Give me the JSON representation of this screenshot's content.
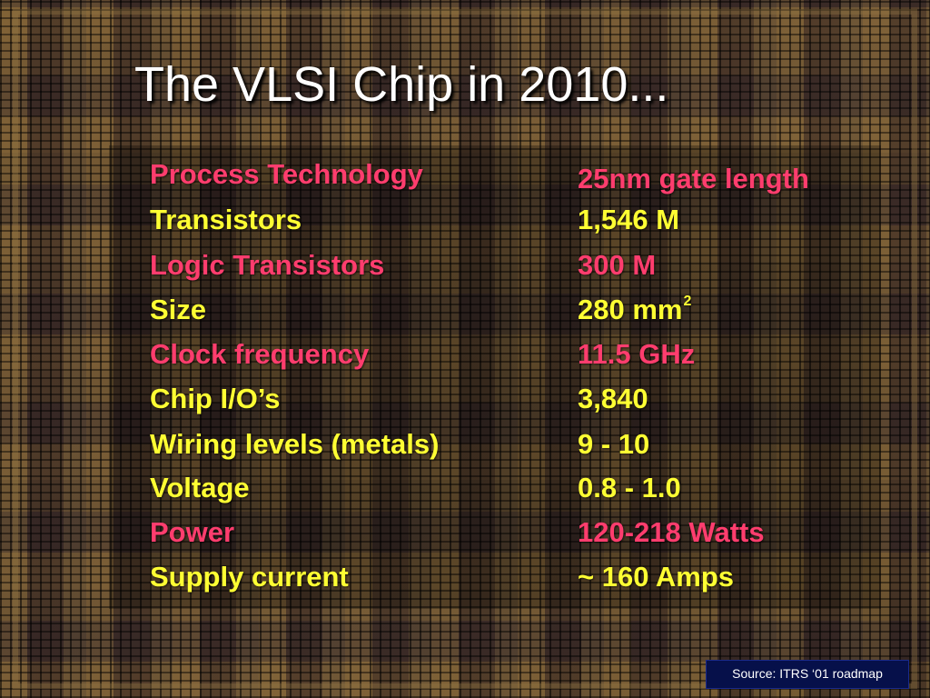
{
  "slide": {
    "title": "The VLSI Chip in 2010...",
    "colors": {
      "highlight": "#ff3d6e",
      "normal": "#ffff33",
      "title": "#ffffff",
      "source_bg": "#06104a"
    },
    "rows": [
      {
        "label": "Process Technology",
        "value": "25nm gate length",
        "color": "#ff3d6e"
      },
      {
        "label": "Transistors",
        "value": "1,546 M",
        "color": "#ffff33"
      },
      {
        "label": "Logic Transistors",
        "value": "300 M",
        "color": "#ff3d6e"
      },
      {
        "label": "Size",
        "value": "280 mm",
        "value_sup": "2",
        "color": "#ffff33"
      },
      {
        "label": "Clock frequency",
        "value": "11.5 GHz",
        "color": "#ff3d6e"
      },
      {
        "label": "Chip I/O’s",
        "value": "3,840",
        "color": "#ffff33"
      },
      {
        "label": "Wiring levels (metals)",
        "value": "9 - 10",
        "color": "#ffff33"
      },
      {
        "label": "Voltage",
        "value": "0.8 - 1.0",
        "color": "#ffff33"
      },
      {
        "label": "Power",
        "value": "120-218 Watts",
        "color": "#ff3d6e"
      },
      {
        "label": "Supply current",
        "value": "~ 160 Amps",
        "color": "#ffff33"
      }
    ],
    "source": "Source: ITRS ‘01 roadmap"
  }
}
